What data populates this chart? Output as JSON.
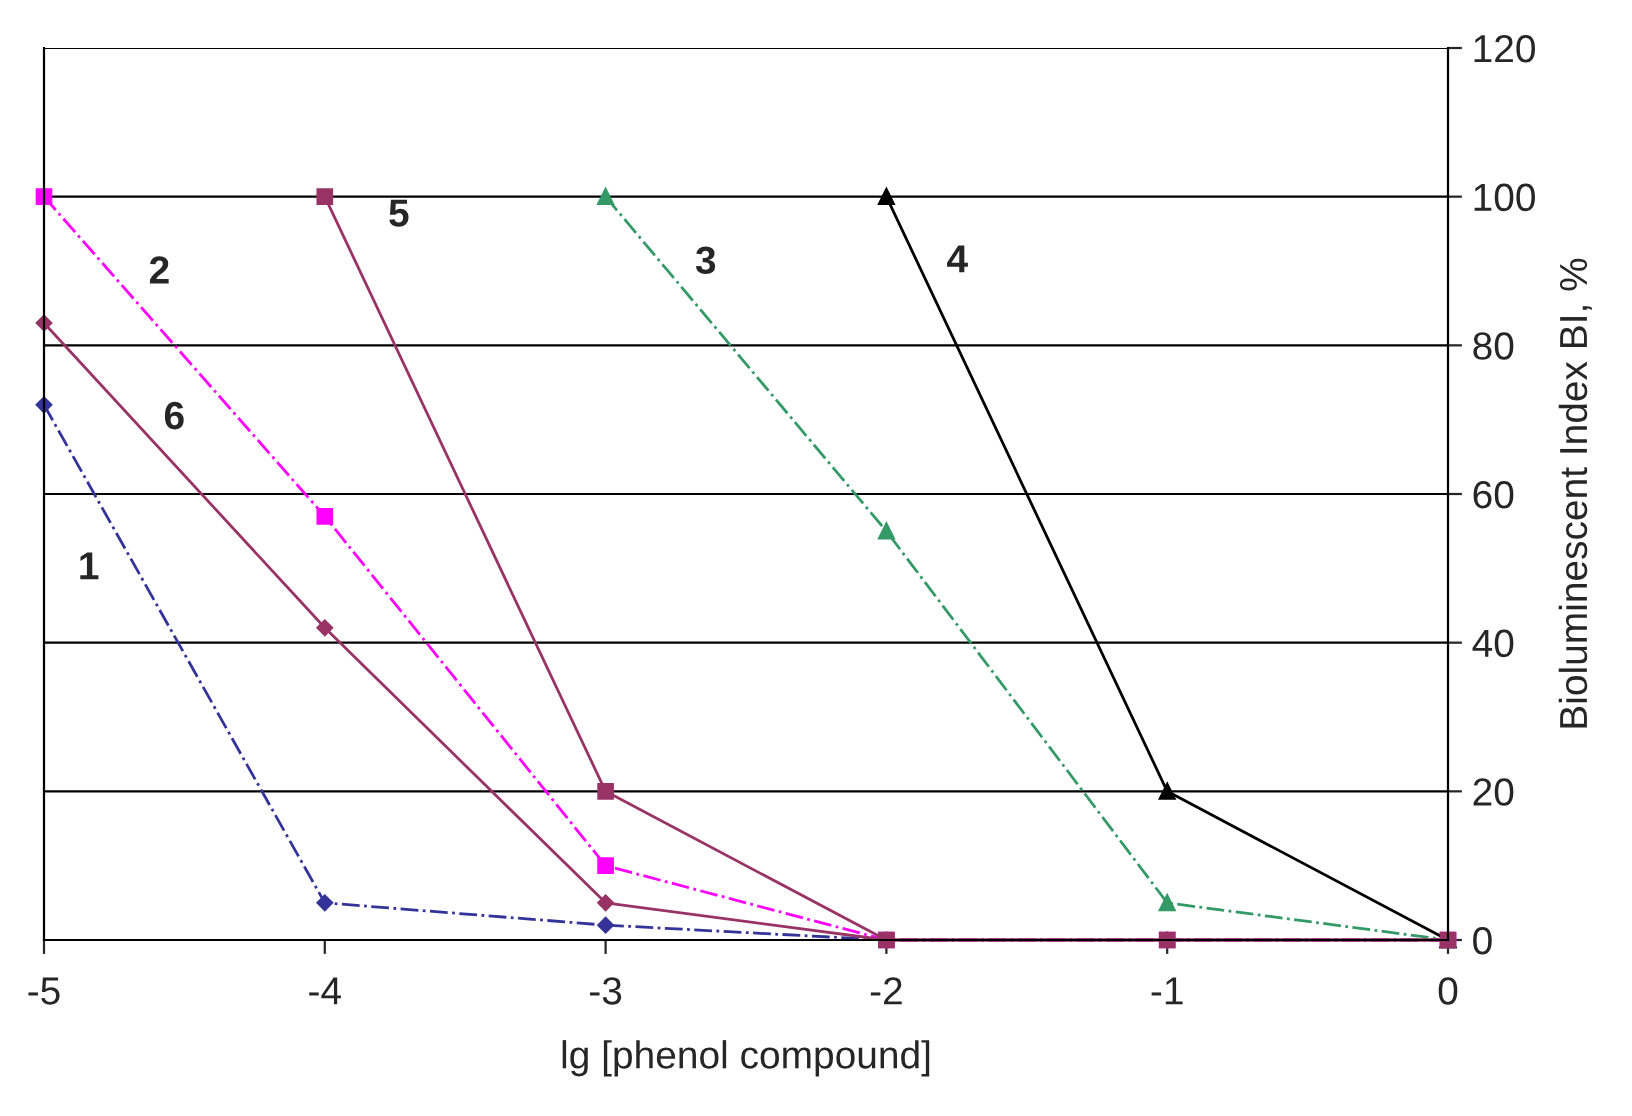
{
  "chart_data": {
    "type": "line",
    "xlabel": "lg [phenol compound]",
    "ylabel": "Bioluminescent Index BI, %",
    "xlim": [
      -5,
      0
    ],
    "xticks": [
      -5,
      -4,
      -3,
      -2,
      -1,
      0
    ],
    "ylim": [
      0,
      120
    ],
    "yticks": [
      0,
      20,
      40,
      60,
      80,
      100,
      120
    ],
    "grid": "y",
    "series": [
      {
        "name": "1",
        "x": [
          -5,
          -4,
          -3,
          -2,
          -1,
          0
        ],
        "values": [
          72,
          5,
          2,
          0,
          0,
          0
        ],
        "color": "#333399",
        "marker": "diamond",
        "line_style": "dashdot"
      },
      {
        "name": "2",
        "x": [
          -5,
          -4,
          -3,
          -2,
          -1,
          0
        ],
        "values": [
          100,
          57,
          10,
          0,
          0,
          0
        ],
        "color": "#ff00ff",
        "marker": "square",
        "line_style": "dashdot"
      },
      {
        "name": "3",
        "x": [
          -3,
          -2,
          -1,
          0
        ],
        "values": [
          100,
          55,
          5,
          0
        ],
        "color": "#339966",
        "marker": "triangle",
        "line_style": "dashdot"
      },
      {
        "name": "4",
        "x": [
          -2,
          -1,
          0
        ],
        "values": [
          100,
          20,
          0
        ],
        "color": "#000000",
        "marker": "triangle",
        "line_style": "solid"
      },
      {
        "name": "5",
        "x": [
          -4,
          -3,
          -2,
          -1,
          0
        ],
        "values": [
          100,
          20,
          0,
          0,
          0
        ],
        "color": "#993366",
        "marker": "square",
        "line_style": "solid"
      },
      {
        "name": "6",
        "x": [
          -5,
          -4,
          -3,
          -2,
          -1,
          0
        ],
        "values": [
          83,
          42,
          5,
          0,
          0,
          0
        ],
        "color": "#993366",
        "marker": "diamond",
        "line_style": "solid"
      }
    ],
    "legend": false
  }
}
